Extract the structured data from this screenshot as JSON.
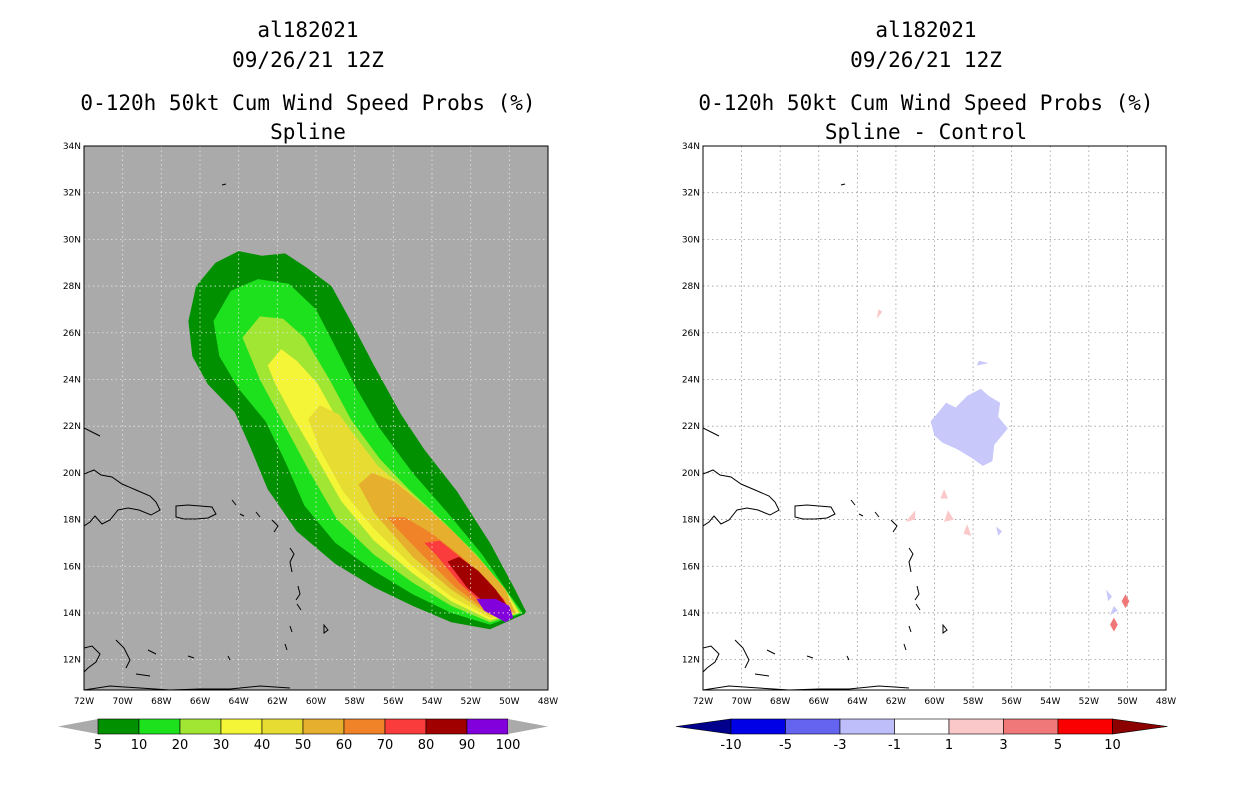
{
  "chart_data": [
    {
      "type": "heatmap",
      "storm_id": "al182021",
      "datetime": "09/26/21 12Z",
      "title": "0-120h 50kt Cum Wind Speed Probs (%)",
      "subtitle": "Spline",
      "x_ticks": [
        "72W",
        "70W",
        "68W",
        "66W",
        "64W",
        "62W",
        "60W",
        "58W",
        "56W",
        "54W",
        "52W",
        "50W",
        "48W"
      ],
      "y_ticks": [
        "12N",
        "14N",
        "16N",
        "18N",
        "20N",
        "22N",
        "24N",
        "26N",
        "28N",
        "30N",
        "32N",
        "34N"
      ],
      "xlim": [
        -72,
        -48
      ],
      "ylim": [
        10.7,
        34
      ],
      "grid": true,
      "land_color": "#aaaaaa",
      "colorbar": {
        "labels": [
          "5",
          "10",
          "20",
          "30",
          "40",
          "50",
          "60",
          "70",
          "80",
          "90",
          "100"
        ],
        "colors": [
          "#009000",
          "#1ee11e",
          "#a0e632",
          "#f5f537",
          "#e6dc32",
          "#e6af2d",
          "#f08228",
          "#fa3c3c",
          "#a00000",
          "#8200dc"
        ]
      },
      "contours": [
        {
          "level": 5,
          "color": "#009000",
          "points": [
            [
              -49.1,
              14.0
            ],
            [
              -51.0,
              13.3
            ],
            [
              -53.0,
              13.6
            ],
            [
              -55.0,
              14.3
            ],
            [
              -57.0,
              15.1
            ],
            [
              -59.0,
              16.1
            ],
            [
              -61.0,
              17.5
            ],
            [
              -62.5,
              19.3
            ],
            [
              -63.4,
              21.1
            ],
            [
              -64.2,
              22.6
            ],
            [
              -65.6,
              23.8
            ],
            [
              -66.4,
              25.0
            ],
            [
              -66.6,
              26.5
            ],
            [
              -66.2,
              28.0
            ],
            [
              -65.2,
              29.0
            ],
            [
              -64.0,
              29.5
            ],
            [
              -62.8,
              29.3
            ],
            [
              -61.6,
              29.4
            ],
            [
              -60.5,
              28.8
            ],
            [
              -59.2,
              28.0
            ],
            [
              -58.2,
              26.5
            ],
            [
              -57.0,
              24.6
            ],
            [
              -55.6,
              22.5
            ],
            [
              -54.4,
              21.0
            ],
            [
              -52.7,
              19.2
            ],
            [
              -51.0,
              17.0
            ],
            [
              -49.7,
              15.0
            ]
          ]
        },
        {
          "level": 10,
          "color": "#1ee11e",
          "points": [
            [
              -49.3,
              14.0
            ],
            [
              -51.0,
              13.5
            ],
            [
              -53.0,
              14.0
            ],
            [
              -55.0,
              14.8
            ],
            [
              -57.0,
              15.8
            ],
            [
              -59.0,
              17.0
            ],
            [
              -60.6,
              18.6
            ],
            [
              -61.6,
              20.5
            ],
            [
              -62.6,
              22.2
            ],
            [
              -64.0,
              23.6
            ],
            [
              -65.0,
              25.0
            ],
            [
              -65.3,
              26.5
            ],
            [
              -64.4,
              27.8
            ],
            [
              -63.0,
              28.3
            ],
            [
              -61.4,
              28.1
            ],
            [
              -60.0,
              27.0
            ],
            [
              -59.0,
              25.4
            ],
            [
              -57.9,
              23.6
            ],
            [
              -56.7,
              21.9
            ],
            [
              -55.0,
              20.0
            ],
            [
              -53.2,
              18.3
            ],
            [
              -51.4,
              16.5
            ],
            [
              -50.0,
              14.8
            ]
          ]
        },
        {
          "level": 20,
          "color": "#a0e632",
          "points": [
            [
              -49.4,
              14.0
            ],
            [
              -51.0,
              13.6
            ],
            [
              -53.0,
              14.3
            ],
            [
              -55.0,
              15.3
            ],
            [
              -57.0,
              16.5
            ],
            [
              -58.9,
              18.0
            ],
            [
              -60.3,
              20.0
            ],
            [
              -61.6,
              22.0
            ],
            [
              -62.9,
              24.0
            ],
            [
              -63.8,
              25.8
            ],
            [
              -62.9,
              26.7
            ],
            [
              -61.7,
              26.6
            ],
            [
              -60.6,
              25.8
            ],
            [
              -59.3,
              24.0
            ],
            [
              -58.2,
              22.3
            ],
            [
              -56.7,
              20.6
            ],
            [
              -55.2,
              19.3
            ],
            [
              -53.4,
              17.9
            ],
            [
              -51.7,
              16.5
            ],
            [
              -50.2,
              15.0
            ]
          ]
        },
        {
          "level": 30,
          "color": "#f5f537",
          "points": [
            [
              -49.5,
              14.0
            ],
            [
              -51.0,
              13.7
            ],
            [
              -53.0,
              14.5
            ],
            [
              -55.0,
              15.7
            ],
            [
              -57.0,
              17.1
            ],
            [
              -58.7,
              18.8
            ],
            [
              -60.0,
              20.7
            ],
            [
              -61.2,
              22.4
            ],
            [
              -62.1,
              23.8
            ],
            [
              -62.5,
              24.6
            ],
            [
              -61.8,
              25.3
            ],
            [
              -61.0,
              24.8
            ],
            [
              -59.9,
              23.8
            ],
            [
              -58.9,
              22.3
            ],
            [
              -57.3,
              20.4
            ],
            [
              -55.5,
              19.1
            ],
            [
              -53.6,
              17.8
            ],
            [
              -51.8,
              16.5
            ],
            [
              -50.3,
              15.1
            ]
          ]
        },
        {
          "level": 40,
          "color": "#e6dc32",
          "points": [
            [
              -49.6,
              14.0
            ],
            [
              -51.0,
              13.8
            ],
            [
              -53.0,
              14.7
            ],
            [
              -55.0,
              16.0
            ],
            [
              -57.0,
              17.6
            ],
            [
              -58.6,
              19.2
            ],
            [
              -59.8,
              21.0
            ],
            [
              -60.4,
              22.3
            ],
            [
              -59.8,
              22.9
            ],
            [
              -58.8,
              22.5
            ],
            [
              -58.0,
              21.6
            ],
            [
              -56.8,
              20.3
            ],
            [
              -55.2,
              19.2
            ],
            [
              -53.5,
              17.9
            ],
            [
              -51.8,
              16.5
            ],
            [
              -50.4,
              15.1
            ]
          ]
        },
        {
          "level": 50,
          "color": "#e6af2d",
          "points": [
            [
              -49.7,
              14.0
            ],
            [
              -51.0,
              13.9
            ],
            [
              -53.0,
              15.0
            ],
            [
              -55.0,
              16.4
            ],
            [
              -57.0,
              18.3
            ],
            [
              -57.8,
              19.5
            ],
            [
              -57.1,
              20.0
            ],
            [
              -55.9,
              19.6
            ],
            [
              -54.4,
              18.6
            ],
            [
              -52.8,
              17.4
            ],
            [
              -51.2,
              16.0
            ],
            [
              -50.2,
              15.0
            ]
          ]
        },
        {
          "level": 60,
          "color": "#f08228",
          "points": [
            [
              -49.8,
              14.0
            ],
            [
              -51.0,
              14.0
            ],
            [
              -52.8,
              15.1
            ],
            [
              -54.4,
              16.4
            ],
            [
              -55.8,
              17.6
            ],
            [
              -56.3,
              18.1
            ],
            [
              -55.4,
              18.1
            ],
            [
              -54.0,
              17.4
            ],
            [
              -52.6,
              16.5
            ],
            [
              -51.1,
              15.4
            ]
          ]
        },
        {
          "level": 70,
          "color": "#fa3c3c",
          "points": [
            [
              -49.9,
              14.0
            ],
            [
              -51.0,
              14.1
            ],
            [
              -52.6,
              15.3
            ],
            [
              -53.8,
              16.5
            ],
            [
              -54.4,
              17.0
            ],
            [
              -53.6,
              17.1
            ],
            [
              -52.4,
              16.3
            ],
            [
              -51.2,
              15.4
            ],
            [
              -50.3,
              14.6
            ]
          ]
        },
        {
          "level": 80,
          "color": "#a00000",
          "points": [
            [
              -50.1,
              13.9
            ],
            [
              -51.1,
              14.3
            ],
            [
              -52.2,
              15.1
            ],
            [
              -53.2,
              16.2
            ],
            [
              -52.6,
              16.4
            ],
            [
              -51.6,
              15.8
            ],
            [
              -50.7,
              15.0
            ],
            [
              -50.2,
              14.4
            ]
          ]
        },
        {
          "level": 90,
          "color": "#8200dc",
          "points": [
            [
              -49.8,
              13.8
            ],
            [
              -50.2,
              13.6
            ],
            [
              -51.3,
              14.1
            ],
            [
              -51.7,
              14.6
            ],
            [
              -50.7,
              14.6
            ],
            [
              -50.0,
              14.3
            ]
          ]
        }
      ]
    },
    {
      "type": "heatmap",
      "storm_id": "al182021",
      "datetime": "09/26/21 12Z",
      "title": "0-120h 50kt Cum Wind Speed Probs (%)",
      "subtitle": "Spline - Control",
      "x_ticks": [
        "72W",
        "70W",
        "68W",
        "66W",
        "64W",
        "62W",
        "60W",
        "58W",
        "56W",
        "54W",
        "52W",
        "50W",
        "48W"
      ],
      "y_ticks": [
        "12N",
        "14N",
        "16N",
        "18N",
        "20N",
        "22N",
        "24N",
        "26N",
        "28N",
        "30N",
        "32N",
        "34N"
      ],
      "xlim": [
        -72,
        -48
      ],
      "ylim": [
        10.7,
        34
      ],
      "grid": true,
      "land_color": "#ffffff",
      "colorbar": {
        "labels": [
          "-10",
          "-5",
          "-3",
          "-1",
          "1",
          "3",
          "5",
          "10"
        ],
        "colors": [
          "#00008c",
          "#0000e6",
          "#6464f0",
          "#bebefa",
          "#ffffff",
          "#fac8c8",
          "#f07878",
          "#fa0000",
          "#8c0000"
        ]
      },
      "difference_patches": [
        {
          "color": "#c8c8fa",
          "points": [
            [
              -59.6,
              21.3
            ],
            [
              -58.8,
              21.0
            ],
            [
              -58.0,
              20.6
            ],
            [
              -57.5,
              20.3
            ],
            [
              -57.0,
              20.5
            ],
            [
              -56.9,
              21.2
            ],
            [
              -56.5,
              21.6
            ],
            [
              -56.2,
              21.9
            ],
            [
              -56.7,
              22.4
            ],
            [
              -56.6,
              23.0
            ],
            [
              -57.2,
              23.3
            ],
            [
              -57.6,
              23.6
            ],
            [
              -58.3,
              23.3
            ],
            [
              -58.9,
              22.8
            ],
            [
              -59.4,
              23.0
            ],
            [
              -59.8,
              22.6
            ],
            [
              -60.2,
              22.2
            ],
            [
              -60.0,
              21.6
            ]
          ]
        },
        {
          "color": "#c8c8fa",
          "points": [
            [
              -57.8,
              24.6
            ],
            [
              -57.2,
              24.7
            ],
            [
              -57.7,
              24.8
            ]
          ]
        },
        {
          "color": "#c8c8fa",
          "points": [
            [
              -56.8,
              17.7
            ],
            [
              -56.7,
              17.3
            ],
            [
              -56.5,
              17.5
            ]
          ]
        },
        {
          "color": "#c8c8fa",
          "points": [
            [
              -50.5,
              14.1
            ],
            [
              -50.9,
              13.9
            ],
            [
              -50.7,
              14.3
            ]
          ]
        },
        {
          "color": "#c8c8fa",
          "points": [
            [
              -51.1,
              15.0
            ],
            [
              -50.8,
              14.7
            ],
            [
              -51.0,
              14.5
            ]
          ]
        },
        {
          "color": "#fac8c8",
          "points": [
            [
              -63.0,
              26.6
            ],
            [
              -62.7,
              26.9
            ],
            [
              -62.9,
              27.0
            ]
          ]
        },
        {
          "color": "#fac8c8",
          "points": [
            [
              -59.5,
              19.3
            ],
            [
              -59.7,
              18.9
            ],
            [
              -59.3,
              18.9
            ]
          ]
        },
        {
          "color": "#fac8c8",
          "points": [
            [
              -59.3,
              18.4
            ],
            [
              -59.5,
              17.9
            ],
            [
              -59.0,
              18.0
            ]
          ]
        },
        {
          "color": "#fac8c8",
          "points": [
            [
              -61.0,
              18.0
            ],
            [
              -61.5,
              17.9
            ],
            [
              -61.0,
              18.4
            ]
          ]
        },
        {
          "color": "#fac8c8",
          "points": [
            [
              -58.5,
              17.4
            ],
            [
              -58.1,
              17.3
            ],
            [
              -58.3,
              17.8
            ]
          ]
        },
        {
          "color": "#f07878",
          "points": [
            [
              -50.1,
              14.2
            ],
            [
              -50.3,
              14.5
            ],
            [
              -50.1,
              14.8
            ],
            [
              -49.9,
              14.5
            ]
          ]
        },
        {
          "color": "#f07878",
          "points": [
            [
              -50.7,
              13.2
            ],
            [
              -50.9,
              13.5
            ],
            [
              -50.7,
              13.8
            ],
            [
              -50.5,
              13.5
            ]
          ]
        }
      ]
    }
  ]
}
